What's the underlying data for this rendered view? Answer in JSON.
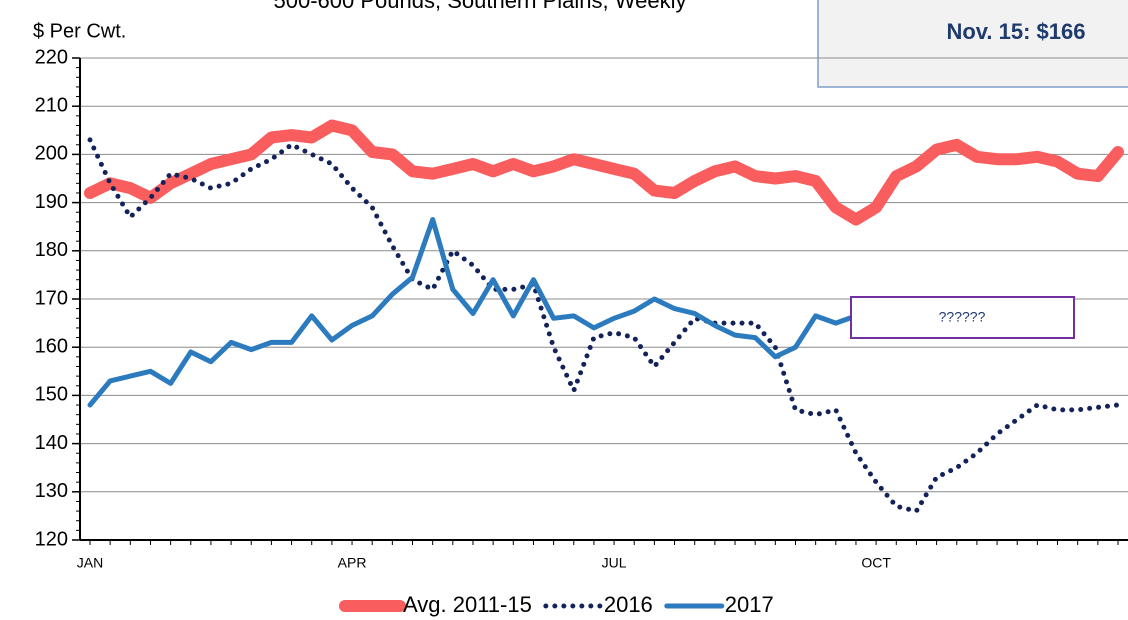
{
  "chart_data": {
    "type": "line",
    "subtitle": "500-600 Pounds, Southern Plains, Weekly",
    "y_label": "$ Per Cwt.",
    "annotation_box": "Nov. 15: $166",
    "annotation": "??????",
    "categories": [
      "JAN",
      null,
      null,
      null,
      null,
      null,
      null,
      null,
      null,
      null,
      null,
      null,
      null,
      "APR",
      null,
      null,
      null,
      null,
      null,
      null,
      null,
      null,
      null,
      null,
      null,
      null,
      "JUL",
      null,
      null,
      null,
      null,
      null,
      null,
      null,
      null,
      null,
      null,
      null,
      null,
      "OCT",
      null,
      null,
      null,
      null,
      null,
      null,
      null,
      null,
      null,
      null,
      null,
      null
    ],
    "ylim": [
      120,
      220
    ],
    "yticks": [
      120,
      130,
      140,
      150,
      160,
      170,
      180,
      190,
      200,
      210,
      220
    ],
    "grid": true,
    "legend": "bottom",
    "series": [
      {
        "name": "Avg. 2011-15",
        "color": "#f95d5d",
        "style": "solid",
        "values": [
          192,
          194,
          193,
          191,
          194,
          196,
          198,
          199,
          200,
          203.5,
          204,
          203.5,
          206,
          205,
          200.5,
          200,
          196.5,
          196,
          197,
          198,
          196.5,
          198,
          196.5,
          197.5,
          199,
          198,
          197,
          196,
          192.5,
          192,
          194.5,
          196.5,
          197.5,
          195.5,
          195,
          195.5,
          194.5,
          189,
          186.5,
          189,
          195.5,
          197.5,
          201,
          202,
          199.5,
          199,
          199,
          199.5,
          198.5,
          196,
          195.5,
          200.5
        ]
      },
      {
        "name": "2016",
        "color": "#13235a",
        "style": "dotted",
        "values": [
          203,
          194,
          187,
          191,
          196,
          195,
          193,
          194,
          197,
          199,
          202,
          200,
          198,
          193,
          189,
          181,
          174,
          172,
          180,
          177,
          172,
          172,
          173,
          160,
          151,
          162,
          163,
          162,
          156,
          161,
          166,
          165,
          165,
          165,
          160,
          147,
          146,
          147,
          138,
          132,
          127,
          126,
          133,
          135,
          138,
          142,
          145,
          148,
          147,
          147,
          147.5,
          148
        ]
      },
      {
        "name": "2017",
        "color": "#2c7bbf",
        "style": "solid",
        "values": [
          148,
          153,
          154,
          155,
          152.5,
          159,
          157,
          161,
          159.5,
          161,
          161,
          166.5,
          161.5,
          164.5,
          166.5,
          171,
          174.5,
          186.5,
          172,
          167,
          174,
          166.5,
          174,
          166,
          166.5,
          164,
          166,
          167.5,
          170,
          168,
          167,
          164.5,
          162.5,
          162,
          158,
          160,
          166.5,
          165,
          166.5,
          null,
          null,
          null,
          null,
          null,
          null,
          null,
          null,
          null,
          null,
          null,
          null,
          null
        ]
      }
    ]
  }
}
